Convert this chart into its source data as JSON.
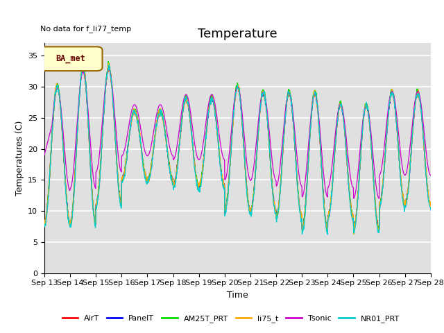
{
  "title": "Temperature",
  "ylabel": "Temperatures (C)",
  "xlabel": "Time",
  "annotation": "No data for f_li77_temp",
  "legend_label": "BA_met",
  "ylim": [
    0,
    37
  ],
  "yticks": [
    0,
    5,
    10,
    15,
    20,
    25,
    30,
    35
  ],
  "n_days": 15,
  "xtick_labels": [
    "Sep 13",
    "Sep 14",
    "Sep 15",
    "Sep 16",
    "Sep 17",
    "Sep 18",
    "Sep 19",
    "Sep 20",
    "Sep 21",
    "Sep 22",
    "Sep 23",
    "Sep 24",
    "Sep 25",
    "Sep 26",
    "Sep 27",
    "Sep 28"
  ],
  "series": [
    {
      "name": "AirT",
      "color": "#ff0000"
    },
    {
      "name": "PanelT",
      "color": "#0000ff"
    },
    {
      "name": "AM25T_PRT",
      "color": "#00dd00"
    },
    {
      "name": "li75_t",
      "color": "#ffaa00"
    },
    {
      "name": "Tsonic",
      "color": "#cc00cc"
    },
    {
      "name": "NR01_PRT",
      "color": "#00cccc"
    }
  ],
  "daily_max": [
    30,
    33,
    33,
    26,
    26,
    28,
    28,
    30,
    29,
    29,
    29,
    27,
    27,
    29,
    29
  ],
  "daily_min": [
    8,
    8,
    11,
    15,
    15,
    14,
    14,
    10,
    10,
    9,
    7,
    9,
    7,
    11,
    11
  ],
  "bg_color": "#e0e0e0",
  "grid_color": "#ffffff",
  "title_fontsize": 13,
  "label_fontsize": 9,
  "tick_fontsize": 8,
  "legend_fontsize": 8
}
